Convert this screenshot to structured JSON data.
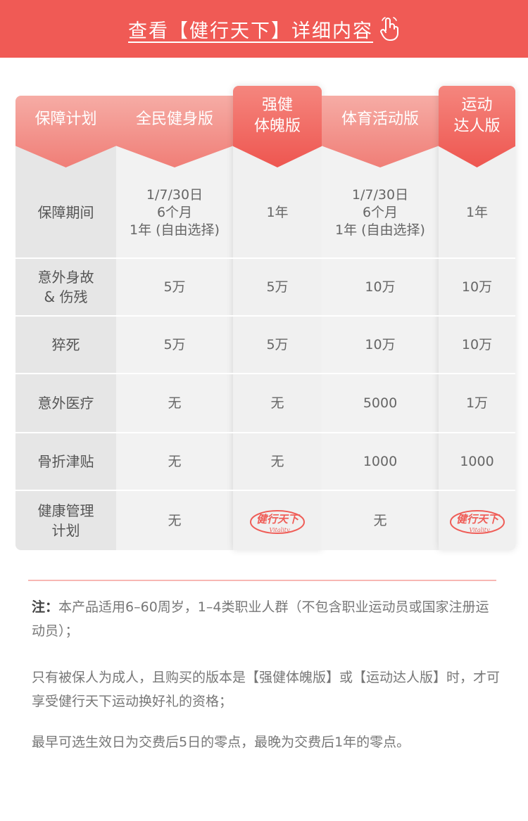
{
  "banner": {
    "link_text": "查看【健行天下】详细内容"
  },
  "table": {
    "header": [
      "保障计划",
      "全民健身版",
      "强健\n体魄版",
      "体育活动版",
      "运动\n达人版"
    ],
    "rows": [
      {
        "label": "保障期间",
        "cells": [
          "1/7/30日\n6个月\n1年 (自由选择)",
          "1年",
          "1/7/30日\n6个月\n1年 (自由选择)",
          "1年"
        ]
      },
      {
        "label": "意外身故\n& 伤残",
        "cells": [
          "5万",
          "5万",
          "10万",
          "10万"
        ]
      },
      {
        "label": "猝死",
        "cells": [
          "5万",
          "5万",
          "10万",
          "10万"
        ]
      },
      {
        "label": "意外医疗",
        "cells": [
          "无",
          "无",
          "5000",
          "1万"
        ]
      },
      {
        "label": "骨折津贴",
        "cells": [
          "无",
          "无",
          "1000",
          "1000"
        ]
      },
      {
        "label": "健康管理\n计划",
        "cells": [
          "无",
          "logo",
          "无",
          "logo"
        ]
      }
    ],
    "logo_text": "健行天下",
    "logo_sub": "Vitality"
  },
  "notes": {
    "prefix": "注：",
    "line1": "本产品适用6–60周岁，1–4类职业人群（不包含职业运动员或国家注册运动员）；",
    "line2": "只有被保人为成人，且购买的版本是【强健体魄版】或【运动达人版】时，才可享受健行天下运动换好礼的资格；",
    "line3": "最早可选生效日为交费后5日的零点，最晚为交费后1年的零点。"
  },
  "colors": {
    "accent": "#f05a55",
    "head_light": "#f29a93",
    "head_dark": "#ef5d57"
  }
}
